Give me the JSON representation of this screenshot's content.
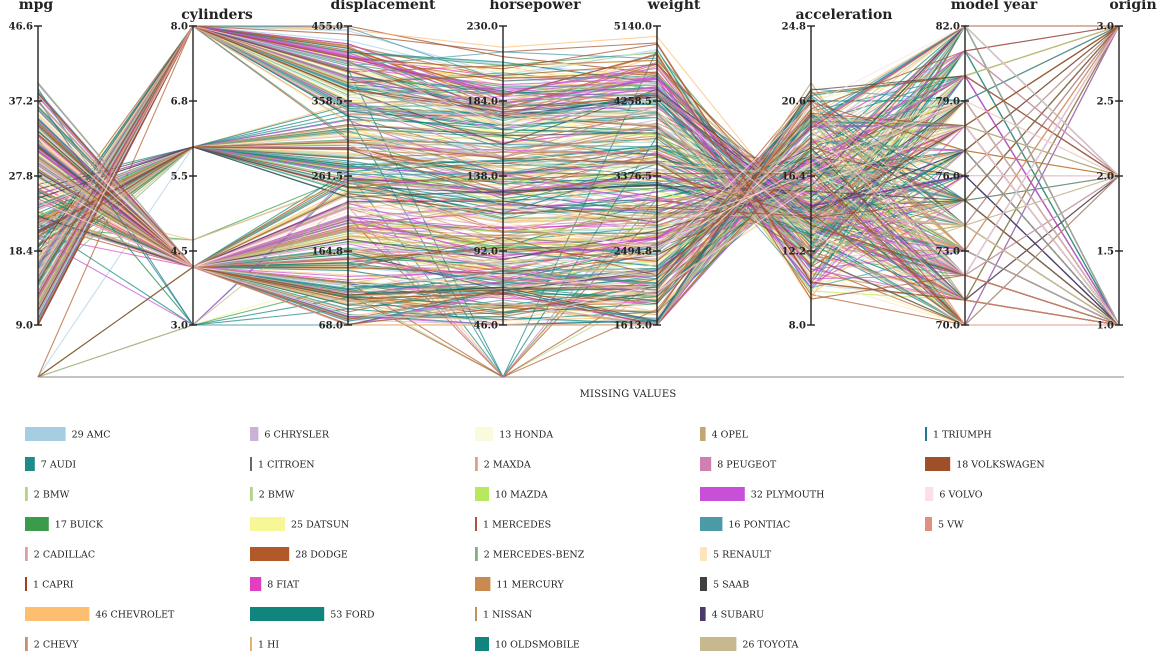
{
  "chart_data": {
    "type": "parallel-coordinates",
    "title": "",
    "missing_label": "MISSING VALUES",
    "dimensions": [
      {
        "key": "mpg",
        "label": "mpg",
        "ticks": [
          "46.6",
          "37.2",
          "27.8",
          "18.4",
          "9.0"
        ],
        "range": [
          9.0,
          46.6
        ],
        "has_missing": true
      },
      {
        "key": "cylinders",
        "label": "cylinders",
        "ticks": [
          "8.0",
          "6.8",
          "5.5",
          "4.5",
          "3.0"
        ],
        "range": [
          3,
          8
        ],
        "has_missing": false
      },
      {
        "key": "displacement",
        "label": "displacement",
        "ticks": [
          "455.0",
          "358.5",
          "261.5",
          "164.8",
          "68.0"
        ],
        "range": [
          68,
          455
        ],
        "has_missing": false
      },
      {
        "key": "horsepower",
        "label": "horsepower",
        "ticks": [
          "230.0",
          "184.0",
          "138.0",
          "92.0",
          "46.0"
        ],
        "range": [
          46,
          230
        ],
        "has_missing": true
      },
      {
        "key": "weight",
        "label": "weight",
        "ticks": [
          "5140.0",
          "4258.5",
          "3376.5",
          "2494.8",
          "1613.0"
        ],
        "range": [
          1613,
          5140
        ],
        "has_missing": false
      },
      {
        "key": "acceleration",
        "label": "acceleration",
        "ticks": [
          "24.8",
          "20.6",
          "16.4",
          "12.2",
          "8.0"
        ],
        "range": [
          8.0,
          24.8
        ],
        "has_missing": false
      },
      {
        "key": "model_year",
        "label": "model year",
        "ticks": [
          "82.0",
          "79.0",
          "76.0",
          "73.0",
          "70.0"
        ],
        "range": [
          70,
          82
        ],
        "has_missing": false
      },
      {
        "key": "origin",
        "label": "origin",
        "ticks": [
          "3.0",
          "2.5",
          "2.0",
          "1.5",
          "1.0"
        ],
        "range": [
          1,
          3
        ],
        "has_missing": false
      }
    ],
    "legend": [
      {
        "label": "29 AMC",
        "count": 29,
        "color": "#a6cee3"
      },
      {
        "label": "7 AUDI",
        "count": 7,
        "color": "#1f8a8a"
      },
      {
        "label": "2 BMW",
        "count": 2,
        "color": "#b2d48a"
      },
      {
        "label": "17 BUICK",
        "count": 17,
        "color": "#3a9c4a"
      },
      {
        "label": "2 CADILLAC",
        "count": 2,
        "color": "#e0a0a0"
      },
      {
        "label": "1 CAPRI",
        "count": 1,
        "color": "#a04020"
      },
      {
        "label": "46 CHEVROLET",
        "count": 46,
        "color": "#fdbf6f"
      },
      {
        "label": "2 CHEVY",
        "count": 2,
        "color": "#c8906a"
      },
      {
        "label": "6 CHRYSLER",
        "count": 6,
        "color": "#cab2d6"
      },
      {
        "label": "1 CITROEN",
        "count": 1,
        "color": "#666666"
      },
      {
        "label": "2 BMW",
        "count": 2,
        "color": "#b2d48a"
      },
      {
        "label": "25 DATSUN",
        "count": 25,
        "color": "#f7f797"
      },
      {
        "label": "28 DODGE",
        "count": 28,
        "color": "#b15928"
      },
      {
        "label": "8 FIAT",
        "count": 8,
        "color": "#e040c0"
      },
      {
        "label": "53 FORD",
        "count": 53,
        "color": "#10857e"
      },
      {
        "label": "1 HI",
        "count": 1,
        "color": "#e8b070"
      },
      {
        "label": "13 HONDA",
        "count": 13,
        "color": "#fafadc"
      },
      {
        "label": "2 MAXDA",
        "count": 2,
        "color": "#e0a080"
      },
      {
        "label": "10 MAZDA",
        "count": 10,
        "color": "#b8e860"
      },
      {
        "label": "1 MERCEDES",
        "count": 1,
        "color": "#b05040"
      },
      {
        "label": "2 MERCEDES-BENZ",
        "count": 2,
        "color": "#80b080"
      },
      {
        "label": "11 MERCURY",
        "count": 11,
        "color": "#c88a50"
      },
      {
        "label": "1 NISSAN",
        "count": 1,
        "color": "#c09060"
      },
      {
        "label": "10 OLDSMOBILE",
        "count": 10,
        "color": "#10857e"
      },
      {
        "label": "4 OPEL",
        "count": 4,
        "color": "#c0a870"
      },
      {
        "label": "8 PEUGEOT",
        "count": 8,
        "color": "#d080b0"
      },
      {
        "label": "32 PLYMOUTH",
        "count": 32,
        "color": "#c850d8"
      },
      {
        "label": "16 PONTIAC",
        "count": 16,
        "color": "#4a9aa8"
      },
      {
        "label": "5 RENAULT",
        "count": 5,
        "color": "#fde4c0"
      },
      {
        "label": "5 SAAB",
        "count": 5,
        "color": "#404040"
      },
      {
        "label": "4 SUBARU",
        "count": 4,
        "color": "#4a3a6a"
      },
      {
        "label": "26 TOYOTA",
        "count": 26,
        "color": "#c8b890"
      },
      {
        "label": "1 TRIUMPH",
        "count": 1,
        "color": "#207890"
      },
      {
        "label": "18 VOLKSWAGEN",
        "count": 18,
        "color": "#a05028"
      },
      {
        "label": "6 VOLVO",
        "count": 6,
        "color": "#fbe0ea"
      },
      {
        "label": "5 VW",
        "count": 5,
        "color": "#e09080"
      }
    ]
  }
}
